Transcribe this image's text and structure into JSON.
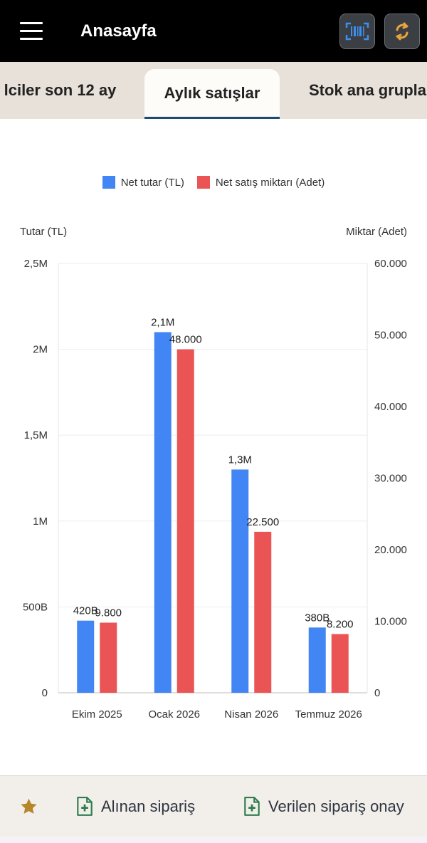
{
  "header": {
    "title": "Anasayfa",
    "menu_icon": "hamburger-menu-icon",
    "barcode_icon": "barcode-scan-icon",
    "sync_icon": "sync-icon"
  },
  "tabs": [
    {
      "label": "lciler son 12 ay",
      "active": false
    },
    {
      "label": "Aylık satışlar",
      "active": true
    },
    {
      "label": "Stok ana grupla",
      "active": false
    }
  ],
  "chart_data": {
    "type": "bar",
    "categories": [
      "Ekim 2025",
      "Ocak 2026",
      "Nisan 2026",
      "Temmuz 2026"
    ],
    "series": [
      {
        "name": "Net tutar (TL)",
        "axis": "left",
        "color": "#4285f4",
        "values": [
          420000,
          2100000,
          1300000,
          380000
        ],
        "labels": [
          "420B",
          "2,1M",
          "1,3M",
          "380B"
        ]
      },
      {
        "name": "Net satış miktarı (Adet)",
        "axis": "right",
        "color": "#ea5455",
        "values": [
          9800,
          48000,
          22500,
          8200
        ],
        "labels": [
          "9.800",
          "48.000",
          "22.500",
          "8.200"
        ]
      }
    ],
    "left_axis": {
      "label": "Tutar (TL)",
      "range": [
        0,
        2500000
      ],
      "ticks": [
        0,
        500000,
        1000000,
        1500000,
        2000000,
        2500000
      ],
      "tick_labels": [
        "0",
        "500B",
        "1M",
        "1,5M",
        "2M",
        "2,5M"
      ]
    },
    "right_axis": {
      "label": "Miktar (Adet)",
      "range": [
        0,
        60000
      ],
      "ticks": [
        0,
        10000,
        20000,
        30000,
        40000,
        50000,
        60000
      ],
      "tick_labels": [
        "0",
        "10.000",
        "20.000",
        "30.000",
        "40.000",
        "50.000",
        "60.000"
      ]
    },
    "grid": true,
    "legend_position": "top"
  },
  "bottom_bar": {
    "favorite_icon": "star-icon",
    "items": [
      {
        "label": "Alınan sipariş",
        "icon": "add-document-icon"
      },
      {
        "label": "Verilen sipariş onay",
        "icon": "add-document-icon"
      }
    ]
  },
  "colors": {
    "accent": "#1c4a73",
    "blue": "#4285f4",
    "red": "#ea5455",
    "star": "#b8862a",
    "doc_icon": "#2e7d4f"
  }
}
